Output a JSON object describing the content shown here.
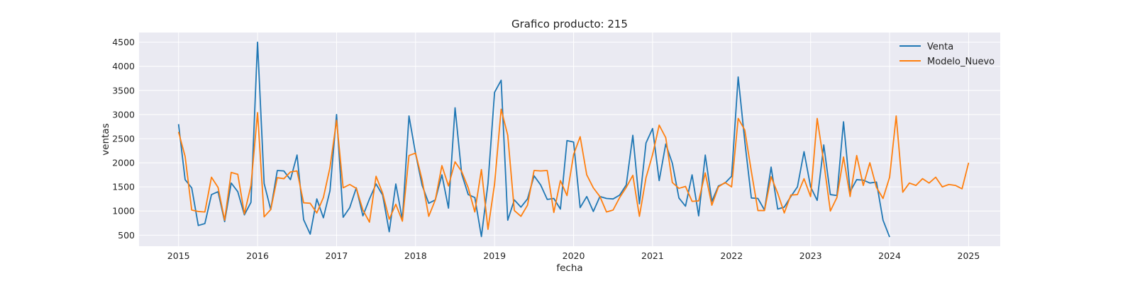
{
  "chart_data": {
    "type": "line",
    "title": "Grafico producto: 215",
    "xlabel": "fecha",
    "ylabel": "ventas",
    "xlim": [
      2014.5,
      2025.4
    ],
    "ylim": [
      270,
      4700
    ],
    "x_ticks": [
      2015,
      2016,
      2017,
      2018,
      2019,
      2020,
      2021,
      2022,
      2023,
      2024,
      2025
    ],
    "y_ticks": [
      500,
      1000,
      1500,
      2000,
      2500,
      3000,
      3500,
      4000,
      4500
    ],
    "grid": true,
    "legend_position": "top-right",
    "series": [
      {
        "name": "Venta",
        "color": "#1f77b4",
        "x_start": "2015-01",
        "values": [
          2800,
          1650,
          1480,
          700,
          740,
          1340,
          1400,
          780,
          1580,
          1400,
          920,
          1180,
          4500,
          1570,
          1030,
          1840,
          1830,
          1650,
          2160,
          820,
          520,
          1250,
          860,
          1420,
          3000,
          870,
          1070,
          1480,
          900,
          1250,
          1560,
          1330,
          570,
          1560,
          820,
          2970,
          2190,
          1530,
          1160,
          1230,
          1750,
          1060,
          3140,
          1770,
          1340,
          1280,
          470,
          1570,
          3460,
          3710,
          810,
          1230,
          1080,
          1250,
          1730,
          1540,
          1240,
          1260,
          1040,
          2460,
          2430,
          1070,
          1300,
          990,
          1300,
          1260,
          1250,
          1330,
          1540,
          2570,
          1150,
          2410,
          2710,
          1630,
          2390,
          1990,
          1270,
          1100,
          1750,
          900,
          2160,
          1200,
          1520,
          1580,
          1720,
          3780,
          2450,
          1270,
          1260,
          1020,
          1910,
          1040,
          1080,
          1300,
          1500,
          2230,
          1500,
          1220,
          2370,
          1340,
          1320,
          2850,
          1400,
          1650,
          1640,
          1580,
          1600,
          810,
          460
        ]
      },
      {
        "name": "Modelo_Nuevo",
        "color": "#ff7f0e",
        "x_start": "2015-01",
        "values": [
          2640,
          2130,
          1020,
          990,
          980,
          1700,
          1490,
          810,
          1800,
          1760,
          940,
          1530,
          3040,
          880,
          1030,
          1690,
          1670,
          1810,
          1830,
          1170,
          1160,
          960,
          1280,
          1900,
          2880,
          1480,
          1550,
          1470,
          1020,
          770,
          1720,
          1370,
          830,
          1140,
          790,
          2150,
          2200,
          1640,
          890,
          1230,
          1940,
          1520,
          2020,
          1820,
          1480,
          980,
          1860,
          620,
          1560,
          3110,
          2570,
          1010,
          890,
          1120,
          1840,
          1830,
          1840,
          970,
          1630,
          1320,
          2170,
          2540,
          1750,
          1480,
          1300,
          980,
          1020,
          1280,
          1490,
          1740,
          890,
          1690,
          2170,
          2780,
          2520,
          1590,
          1470,
          1510,
          1200,
          1210,
          1790,
          1120,
          1500,
          1590,
          1500,
          2920,
          2680,
          1820,
          1010,
          1010,
          1710,
          1370,
          960,
          1330,
          1340,
          1670,
          1300,
          2920,
          2010,
          1000,
          1280,
          2120,
          1300,
          2150,
          1530,
          2000,
          1490,
          1260,
          1700,
          2970,
          1390,
          1580,
          1530,
          1670,
          1580,
          1700,
          1500,
          1550,
          1530,
          1460,
          2000
        ]
      }
    ]
  }
}
